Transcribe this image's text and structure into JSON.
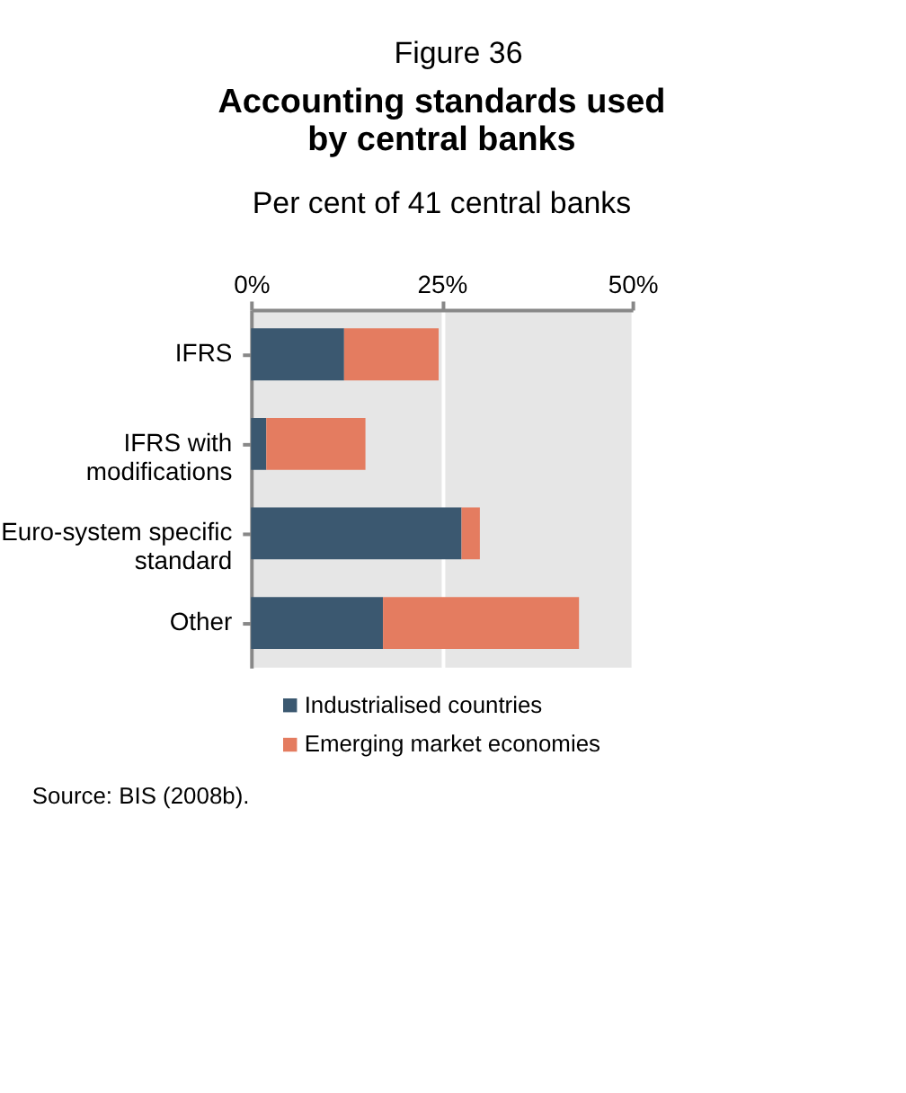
{
  "chart_data": {
    "type": "bar",
    "orientation": "horizontal",
    "stacked": true,
    "title": "Accounting standards used by central banks",
    "subtitle": "Per cent of 41 central banks",
    "annotations": [
      "Figure 36",
      "Source: BIS (2008b)."
    ],
    "categories": [
      "IFRS",
      "IFRS with modifications",
      "Euro-system specific standard",
      "Other"
    ],
    "series": [
      {
        "name": "Industrialised countries",
        "color": "#3b5870",
        "values": [
          12.2,
          2.0,
          27.6,
          17.3
        ]
      },
      {
        "name": "Emerging market economies",
        "color": "#e47c60",
        "values": [
          12.4,
          13.0,
          2.4,
          25.7
        ]
      }
    ],
    "xlim": [
      0,
      50
    ],
    "xticks": [
      {
        "value": 0,
        "label": "0%"
      },
      {
        "value": 25,
        "label": "25%"
      },
      {
        "value": 50,
        "label": "50%"
      }
    ],
    "grid": "x",
    "legend": "bottom"
  }
}
